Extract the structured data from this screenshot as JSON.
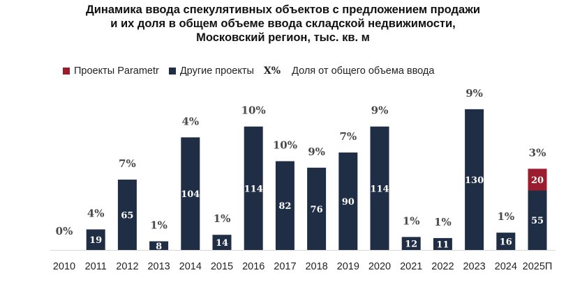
{
  "title_lines": [
    "Динамика ввода спекулятивных объектов с предложением продажи",
    "и их доля в общем объеме ввода складской недвижимости,",
    "Московский регион, тыс. кв. м"
  ],
  "legend": {
    "parametr": "Проекты Parametr",
    "other": "Другие проекты",
    "share_marker": "X%",
    "share": "Доля от общего объема ввода"
  },
  "colors": {
    "parametr": "#9b1c2c",
    "other": "#1f2d45",
    "baseline": "#d6d6d6"
  },
  "chart_data": {
    "type": "bar",
    "stacked": true,
    "categories": [
      "2010",
      "2011",
      "2012",
      "2013",
      "2014",
      "2015",
      "2016",
      "2017",
      "2018",
      "2019",
      "2020",
      "2021",
      "2022",
      "2023",
      "2024",
      "2025П"
    ],
    "series": [
      {
        "name": "Другие проекты",
        "values": [
          0,
          19,
          65,
          8,
          104,
          14,
          114,
          82,
          76,
          90,
          114,
          12,
          11,
          130,
          16,
          55
        ]
      },
      {
        "name": "Проекты Parametr",
        "values": [
          0,
          0,
          0,
          0,
          0,
          0,
          0,
          0,
          0,
          0,
          0,
          0,
          0,
          0,
          0,
          20
        ]
      }
    ],
    "share_labels": [
      "0%",
      "4%",
      "7%",
      "1%",
      "4%",
      "1%",
      "10%",
      "10%",
      "9%",
      "7%",
      "9%",
      "1%",
      "1%",
      "9%",
      "1%",
      "3%"
    ],
    "legend_position": "top-left",
    "grid": false
  }
}
